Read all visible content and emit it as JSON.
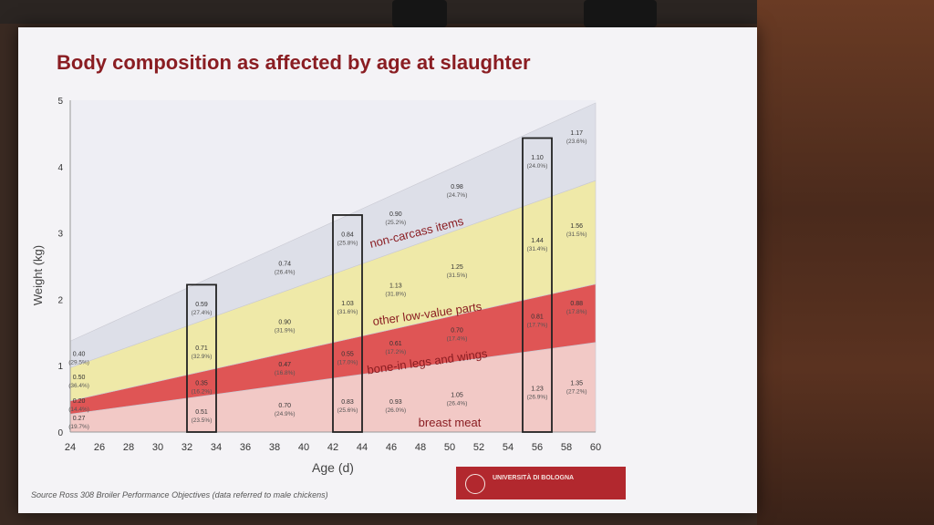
{
  "slide": {
    "source": "Source Ross 308 Broiler Performance Objectives (data referred to male chickens)",
    "logo_text": "UNIVERSITÀ DI BOLOGNA"
  },
  "chart_data": {
    "type": "area",
    "title": "Body composition as affected by age at slaughter",
    "xlabel": "Age (d)",
    "ylabel": "Weight (kg)",
    "xlim": [
      24,
      60
    ],
    "ylim": [
      0,
      5
    ],
    "xticks": [
      24,
      26,
      28,
      30,
      32,
      34,
      36,
      38,
      40,
      42,
      44,
      46,
      48,
      50,
      52,
      54,
      56,
      58,
      60
    ],
    "yticks": [
      0,
      1,
      2,
      3,
      4,
      5
    ],
    "colors": {
      "breast meat": "#f2c9c6",
      "bone-in legs and wings": "#df5555",
      "other low-value parts": "#efe9a8",
      "non-carcass items": "#dddfe8"
    },
    "x": [
      24,
      60
    ],
    "series": [
      {
        "name": "breast meat",
        "values": [
          0.27,
          1.35
        ]
      },
      {
        "name": "bone-in legs and wings",
        "values": [
          0.2,
          0.88
        ]
      },
      {
        "name": "other low-value parts",
        "values": [
          0.5,
          1.56
        ]
      },
      {
        "name": "non-carcass items",
        "values": [
          0.4,
          1.17
        ]
      }
    ],
    "highlight_boxes": [
      {
        "x": 33,
        "label_points": [
          {
            "text": "0.51",
            "pct": "(23.5%)",
            "y": 0.25
          },
          {
            "text": "0.35",
            "pct": "(16.2%)",
            "y": 0.68
          },
          {
            "text": "0.71",
            "pct": "(32.9%)",
            "y": 1.21
          },
          {
            "text": "0.59",
            "pct": "(27.4%)",
            "y": 1.87
          }
        ]
      },
      {
        "x": 43,
        "label_points": [
          {
            "text": "0.83",
            "pct": "(25.6%)",
            "y": 0.4
          },
          {
            "text": "0.55",
            "pct": "(17.0%)",
            "y": 1.12
          },
          {
            "text": "1.03",
            "pct": "(31.6%)",
            "y": 1.88
          },
          {
            "text": "0.84",
            "pct": "(25.8%)",
            "y": 2.92
          }
        ]
      },
      {
        "x": 56,
        "label_points": [
          {
            "text": "1.23",
            "pct": "(26.9%)",
            "y": 0.6
          },
          {
            "text": "0.81",
            "pct": "(17.7%)",
            "y": 1.68
          },
          {
            "text": "1.44",
            "pct": "(31.4%)",
            "y": 2.83
          },
          {
            "text": "1.10",
            "pct": "(24.0%)",
            "y": 4.08
          }
        ]
      }
    ],
    "data_labels": [
      {
        "text": "0.40",
        "pct": "(29.5%)",
        "x": 24.6,
        "y": 1.12
      },
      {
        "text": "0.50",
        "pct": "(36.4%)",
        "x": 24.6,
        "y": 0.77
      },
      {
        "text": "0.20",
        "pct": "(14.4%)",
        "x": 24.6,
        "y": 0.41
      },
      {
        "text": "0.27",
        "pct": "(19.7%)",
        "x": 24.6,
        "y": 0.15
      },
      {
        "text": "0.74",
        "pct": "(26.4%)",
        "x": 38.7,
        "y": 2.48
      },
      {
        "text": "0.90",
        "pct": "(31.9%)",
        "x": 38.7,
        "y": 1.6
      },
      {
        "text": "0.47",
        "pct": "(16.8%)",
        "x": 38.7,
        "y": 0.96
      },
      {
        "text": "0.70",
        "pct": "(24.9%)",
        "x": 38.7,
        "y": 0.34
      },
      {
        "text": "0.90",
        "pct": "(25.2%)",
        "x": 46.3,
        "y": 3.23
      },
      {
        "text": "1.13",
        "pct": "(31.8%)",
        "x": 46.3,
        "y": 2.15
      },
      {
        "text": "0.61",
        "pct": "(17.2%)",
        "x": 46.3,
        "y": 1.28
      },
      {
        "text": "0.93",
        "pct": "(26.0%)",
        "x": 46.3,
        "y": 0.4
      },
      {
        "text": "0.98",
        "pct": "(24.7%)",
        "x": 50.5,
        "y": 3.64
      },
      {
        "text": "1.25",
        "pct": "(31.5%)",
        "x": 50.5,
        "y": 2.43
      },
      {
        "text": "0.70",
        "pct": "(17.4%)",
        "x": 50.5,
        "y": 1.48
      },
      {
        "text": "1.05",
        "pct": "(26.4%)",
        "x": 50.5,
        "y": 0.5
      },
      {
        "text": "1.17",
        "pct": "(23.6%)",
        "x": 58.7,
        "y": 4.45
      },
      {
        "text": "1.56",
        "pct": "(31.5%)",
        "x": 58.7,
        "y": 3.05
      },
      {
        "text": "0.88",
        "pct": "(17.8%)",
        "x": 58.7,
        "y": 1.88
      },
      {
        "text": "1.35",
        "pct": "(27.2%)",
        "x": 58.7,
        "y": 0.68
      }
    ],
    "band_labels": [
      {
        "text": "non-carcass items",
        "x": 47.8,
        "y": 2.95,
        "rotate": -14
      },
      {
        "text": "other low-value parts",
        "x": 48.5,
        "y": 1.72,
        "rotate": -8
      },
      {
        "text": "bone-in legs and wings",
        "x": 48.5,
        "y": 1.0,
        "rotate": -8
      },
      {
        "text": "breast meat",
        "x": 50,
        "y": 0.08,
        "rotate": 0
      }
    ]
  }
}
